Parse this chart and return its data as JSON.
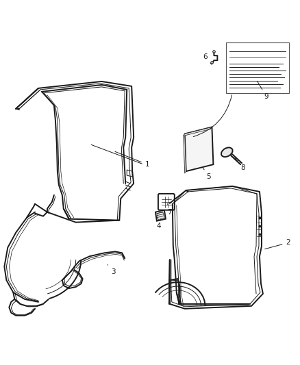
{
  "background_color": "#ffffff",
  "line_color": "#1a1a1a",
  "label_color": "#1a1a1a",
  "fig_width": 4.38,
  "fig_height": 5.33,
  "dpi": 100,
  "lw_outer": 1.4,
  "lw_inner": 0.7,
  "lw_thin": 0.5,
  "label_fontsize": 7.5
}
